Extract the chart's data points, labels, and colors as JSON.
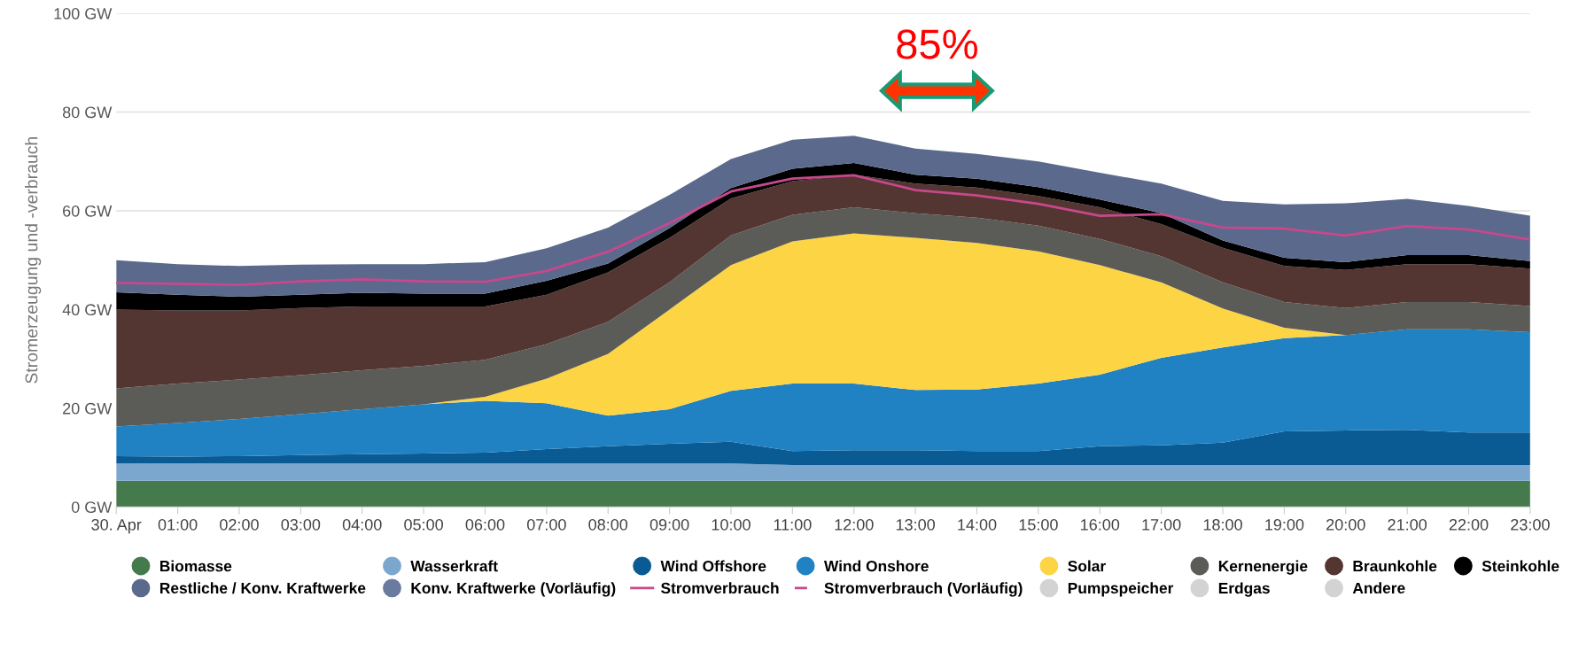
{
  "chart_data": {
    "type": "area",
    "stacked": true,
    "ylabel": "Stromerzeugung und -verbrauch",
    "categories": [
      "30. Apr",
      "01:00",
      "02:00",
      "03:00",
      "04:00",
      "05:00",
      "06:00",
      "07:00",
      "08:00",
      "09:00",
      "10:00",
      "11:00",
      "12:00",
      "13:00",
      "14:00",
      "15:00",
      "16:00",
      "17:00",
      "18:00",
      "19:00",
      "20:00",
      "21:00",
      "22:00",
      "23:00"
    ],
    "ylim": [
      0,
      100
    ],
    "yticks": [
      {
        "value": 0,
        "label": "0 GW"
      },
      {
        "value": 20,
        "label": "20 GW"
      },
      {
        "value": 40,
        "label": "40 GW"
      },
      {
        "value": 60,
        "label": "60 GW"
      },
      {
        "value": 80,
        "label": "80 GW"
      },
      {
        "value": 100,
        "label": "100 GW"
      }
    ],
    "grid": "y",
    "legend": "bottom",
    "annotations": [
      "85%"
    ],
    "series": [
      {
        "name": "Biomasse",
        "color": "#457a4c",
        "values": [
          5.3,
          5.3,
          5.3,
          5.3,
          5.3,
          5.3,
          5.3,
          5.3,
          5.3,
          5.3,
          5.3,
          5.3,
          5.3,
          5.3,
          5.3,
          5.3,
          5.3,
          5.3,
          5.3,
          5.3,
          5.3,
          5.3,
          5.3,
          5.3
        ]
      },
      {
        "name": "Wasserkraft",
        "color": "#7ba7cf",
        "values": [
          3.5,
          3.5,
          3.5,
          3.5,
          3.5,
          3.5,
          3.5,
          3.5,
          3.5,
          3.5,
          3.5,
          3.2,
          3.2,
          3.2,
          3.2,
          3.2,
          3.2,
          3.2,
          3.2,
          3.2,
          3.2,
          3.2,
          3.2,
          3.2
        ]
      },
      {
        "name": "Wind Offshore",
        "color": "#0a5a93",
        "values": [
          1.5,
          1.4,
          1.5,
          1.7,
          1.9,
          2.0,
          2.2,
          2.9,
          3.5,
          4.0,
          4.4,
          2.8,
          3.0,
          3.0,
          2.8,
          2.8,
          3.8,
          4.0,
          4.5,
          6.8,
          7.0,
          7.1,
          6.6,
          6.6
        ]
      },
      {
        "name": "Wind Onshore",
        "color": "#2081c3",
        "values": [
          6.0,
          6.8,
          7.5,
          8.3,
          9.1,
          10.0,
          10.5,
          9.3,
          6.2,
          7.0,
          10.3,
          13.7,
          13.5,
          12.2,
          12.5,
          13.7,
          14.5,
          17.7,
          19.3,
          18.9,
          19.3,
          20.4,
          20.9,
          20.3
        ]
      },
      {
        "name": "Solar",
        "color": "#fdd444",
        "values": [
          0,
          0,
          0,
          0,
          0,
          0,
          0.8,
          5.0,
          12.5,
          20.2,
          25.5,
          28.8,
          30.4,
          30.8,
          29.7,
          26.8,
          22.2,
          15.3,
          7.9,
          2.1,
          0,
          0,
          0,
          0
        ]
      },
      {
        "name": "Kernenergie",
        "color": "#5b5b57",
        "values": [
          7.7,
          8.0,
          8.0,
          7.9,
          7.9,
          7.8,
          7.5,
          7.0,
          6.5,
          5.5,
          6.0,
          5.4,
          5.3,
          5.0,
          5.1,
          5.2,
          5.3,
          5.3,
          5.3,
          5.2,
          5.5,
          5.5,
          5.5,
          5.3
        ]
      },
      {
        "name": "Braunkohle",
        "color": "#533632",
        "values": [
          16.0,
          14.8,
          14.0,
          13.6,
          12.9,
          12.0,
          10.8,
          10.0,
          10.0,
          9.0,
          7.5,
          6.8,
          6.6,
          6.0,
          6.1,
          6.0,
          6.4,
          6.5,
          7.0,
          7.3,
          7.7,
          7.7,
          7.7,
          7.6
        ]
      },
      {
        "name": "Steinkohle",
        "color": "#000000",
        "values": [
          3.5,
          3.2,
          2.8,
          2.7,
          2.8,
          2.6,
          2.6,
          2.8,
          1.8,
          2.0,
          2.1,
          2.5,
          2.4,
          1.8,
          1.8,
          1.8,
          1.6,
          2.2,
          1.5,
          1.7,
          1.6,
          1.8,
          1.8,
          1.5
        ]
      },
      {
        "name": "Restliche / Konv. Kraftwerke",
        "color": "#5b6a8c",
        "values": [
          6.5,
          6.2,
          6.2,
          6.1,
          5.8,
          6.0,
          6.4,
          6.6,
          7.3,
          6.7,
          5.9,
          5.9,
          5.5,
          5.3,
          5.0,
          5.2,
          5.4,
          6.0,
          8.0,
          10.8,
          11.9,
          11.4,
          10.0,
          9.2
        ]
      },
      {
        "name": "Konv. Kraftwerke (Vorläufig)",
        "color": "#6b7ba0",
        "values": [
          null,
          null,
          null,
          null,
          null,
          null,
          null,
          null,
          null,
          null,
          null,
          null,
          null,
          null,
          null,
          null,
          null,
          null,
          null,
          null,
          null,
          null,
          null,
          null
        ]
      },
      {
        "name": "Stromverbrauch",
        "type": "line",
        "color": "#c7488c",
        "values": [
          45.4,
          45.2,
          45.0,
          45.7,
          46.1,
          45.7,
          45.6,
          47.8,
          51.7,
          57.5,
          63.9,
          66.5,
          67.2,
          64.2,
          63.1,
          61.4,
          59.0,
          59.3,
          56.6,
          56.4,
          55.0,
          56.9,
          56.2,
          54.2
        ]
      },
      {
        "name": "Stromverbrauch (Vorläufig)",
        "type": "line",
        "line_style": "dashed",
        "color": "#c7488c",
        "values": [
          null,
          null,
          null,
          null,
          null,
          null,
          null,
          null,
          null,
          null,
          null,
          null,
          null,
          null,
          null,
          null,
          null,
          null,
          null,
          null,
          null,
          null,
          null,
          null
        ]
      },
      {
        "name": "Pumpspeicher",
        "color": "#d3d3d3",
        "values": [
          null,
          null,
          null,
          null,
          null,
          null,
          null,
          null,
          null,
          null,
          null,
          null,
          null,
          null,
          null,
          null,
          null,
          null,
          null,
          null,
          null,
          null,
          null,
          null
        ]
      },
      {
        "name": "Erdgas",
        "color": "#d3d3d3",
        "values": [
          null,
          null,
          null,
          null,
          null,
          null,
          null,
          null,
          null,
          null,
          null,
          null,
          null,
          null,
          null,
          null,
          null,
          null,
          null,
          null,
          null,
          null,
          null,
          null
        ]
      },
      {
        "name": "Andere",
        "color": "#d3d3d3",
        "values": [
          null,
          null,
          null,
          null,
          null,
          null,
          null,
          null,
          null,
          null,
          null,
          null,
          null,
          null,
          null,
          null,
          null,
          null,
          null,
          null,
          null,
          null,
          null,
          null
        ]
      }
    ]
  }
}
